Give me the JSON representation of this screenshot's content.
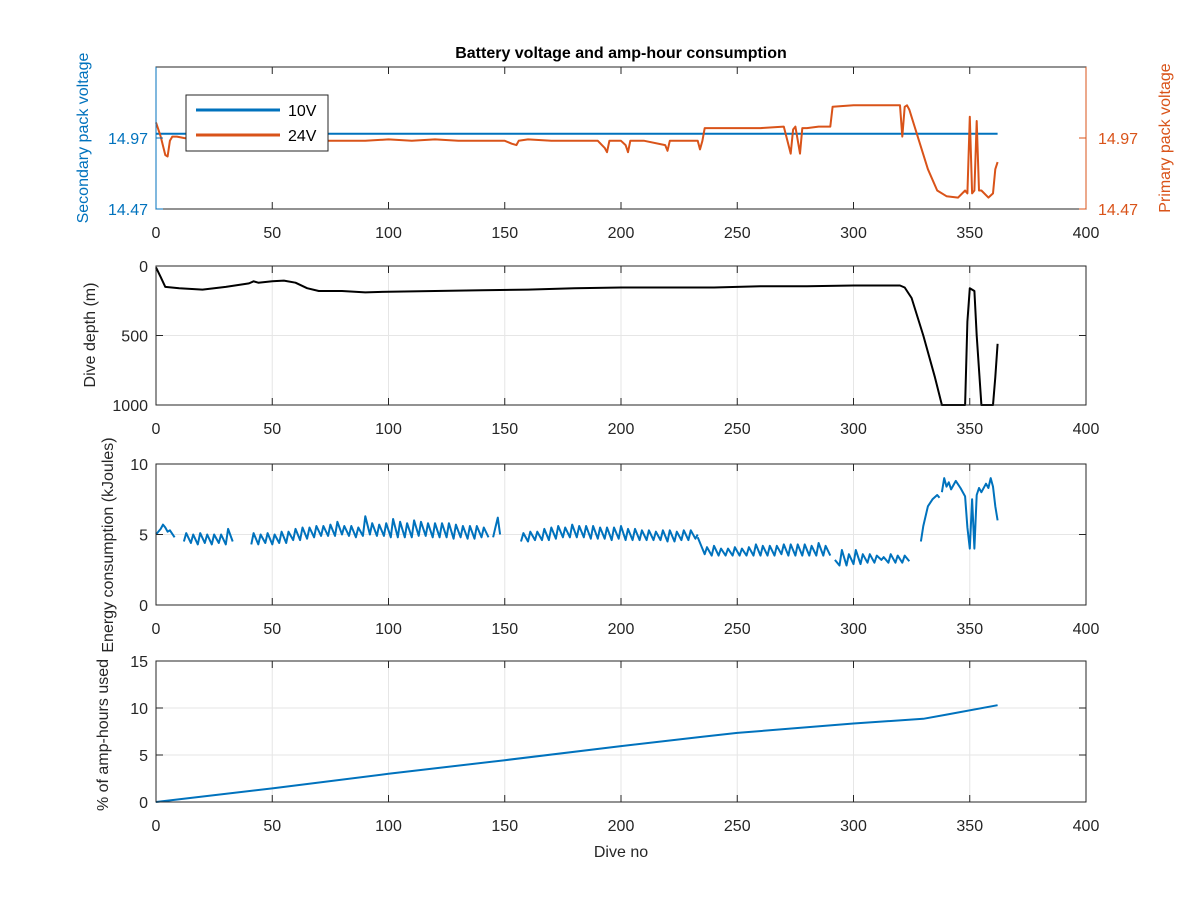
{
  "colors": {
    "blue": "#0072BD",
    "orange": "#D95319",
    "black": "#000000",
    "axis": "#262626",
    "grid": "#e6e6e6"
  },
  "chart_data": [
    {
      "type": "line",
      "title": "Battery voltage and amp-hour consumption",
      "xlabel": "",
      "ylabel_left": "Secondary pack voltage",
      "ylabel_right": "Primary pack voltage",
      "xlim": [
        0,
        400
      ],
      "ylim_left": [
        14.47,
        15.47
      ],
      "ylim_right": [
        14.47,
        15.47
      ],
      "xticks": [
        "0",
        "50",
        "100",
        "150",
        "200",
        "250",
        "300",
        "350",
        "400"
      ],
      "yticks_left": [
        "14.47",
        "14.97"
      ],
      "yticks_right": [
        "14.47",
        "14.97"
      ],
      "grid": false,
      "legend": {
        "position": "top-left",
        "entries": [
          "10V",
          "24V"
        ]
      },
      "series": [
        {
          "name": "10V",
          "axis": "left",
          "color": "#0072BD",
          "x": [
            0,
            362
          ],
          "y": [
            15.0,
            15.0
          ]
        },
        {
          "name": "24V",
          "axis": "right",
          "color": "#D95319",
          "x": [
            0,
            2,
            4,
            5,
            6,
            7,
            9,
            12,
            20,
            30,
            40,
            50,
            60,
            70,
            80,
            90,
            100,
            110,
            120,
            130,
            140,
            150,
            153,
            155,
            156,
            160,
            170,
            180,
            190,
            193,
            194,
            195,
            200,
            202,
            203,
            204,
            210,
            219,
            220,
            221,
            230,
            233,
            234,
            235,
            236,
            250,
            260,
            270,
            273,
            274,
            275,
            277,
            278,
            279,
            280,
            285,
            290,
            291,
            300,
            310,
            320,
            321,
            322,
            323,
            324,
            328,
            332,
            336,
            340,
            345,
            348,
            349,
            350,
            351,
            352,
            353,
            354,
            355,
            358,
            360,
            361,
            362
          ],
          "y": [
            15.08,
            14.98,
            14.85,
            14.84,
            14.95,
            14.98,
            14.98,
            14.97,
            14.95,
            14.96,
            14.95,
            14.96,
            14.96,
            14.95,
            14.95,
            14.95,
            14.96,
            14.95,
            14.96,
            14.95,
            14.95,
            14.95,
            14.93,
            14.92,
            14.95,
            14.96,
            14.95,
            14.95,
            14.95,
            14.9,
            14.87,
            14.95,
            14.95,
            14.92,
            14.87,
            14.95,
            14.95,
            14.92,
            14.88,
            14.95,
            14.95,
            14.95,
            14.89,
            14.95,
            15.04,
            15.04,
            15.04,
            15.05,
            14.86,
            15.03,
            15.05,
            14.86,
            15.04,
            15.04,
            15.04,
            15.05,
            15.05,
            15.19,
            15.2,
            15.2,
            15.2,
            14.98,
            15.19,
            15.2,
            15.17,
            14.96,
            14.75,
            14.6,
            14.56,
            14.55,
            14.6,
            14.58,
            15.12,
            14.58,
            14.6,
            15.09,
            14.6,
            14.6,
            14.55,
            14.58,
            14.75,
            14.8
          ]
        }
      ]
    },
    {
      "type": "line",
      "title": "",
      "xlabel": "",
      "ylabel": "Dive depth (m)",
      "xlim": [
        0,
        400
      ],
      "ylim": [
        0,
        1000
      ],
      "y_reversed": true,
      "xticks": [
        "0",
        "50",
        "100",
        "150",
        "200",
        "250",
        "300",
        "350",
        "400"
      ],
      "yticks": [
        "0",
        "500",
        "1000"
      ],
      "grid": true,
      "series": [
        {
          "color": "#000000",
          "x": [
            0,
            2,
            4,
            10,
            20,
            30,
            40,
            42,
            44,
            50,
            55,
            60,
            65,
            70,
            80,
            90,
            100,
            120,
            140,
            160,
            180,
            200,
            220,
            240,
            260,
            280,
            300,
            320,
            322,
            325,
            330,
            335,
            338,
            340,
            345,
            348,
            349,
            350,
            351,
            352,
            353,
            355,
            360,
            361,
            362
          ],
          "y": [
            10,
            80,
            150,
            160,
            170,
            150,
            125,
            110,
            120,
            110,
            105,
            120,
            160,
            180,
            180,
            190,
            185,
            180,
            175,
            170,
            160,
            155,
            155,
            155,
            145,
            145,
            140,
            140,
            155,
            230,
            500,
            800,
            1000,
            1000,
            1000,
            1000,
            400,
            160,
            170,
            180,
            500,
            1000,
            1000,
            800,
            560
          ]
        }
      ]
    },
    {
      "type": "line",
      "title": "",
      "xlabel": "",
      "ylabel": "Energy consumption (kJoules)",
      "xlim": [
        0,
        400
      ],
      "ylim": [
        0,
        10
      ],
      "xticks": [
        "0",
        "50",
        "100",
        "150",
        "200",
        "250",
        "300",
        "350",
        "400"
      ],
      "yticks": [
        "0",
        "5",
        "10"
      ],
      "grid": true,
      "series": [
        {
          "color": "#0072BD",
          "segments": [
            {
              "x": [
                0,
                2,
                3,
                4,
                5,
                6,
                8
              ],
              "y": [
                5.0,
                5.4,
                5.7,
                5.5,
                5.2,
                5.3,
                4.8
              ]
            },
            {
              "x": [
                12,
                13,
                15,
                16,
                18,
                19,
                21,
                22,
                24,
                25,
                27,
                28,
                30,
                31,
                33
              ],
              "y": [
                4.5,
                5.1,
                4.4,
                5.0,
                4.3,
                5.1,
                4.4,
                5.0,
                4.3,
                5.0,
                4.4,
                5.0,
                4.3,
                5.4,
                4.5
              ]
            },
            {
              "x": [
                41,
                42,
                44,
                45,
                47,
                48,
                50,
                51,
                53,
                54,
                56,
                57,
                59,
                60,
                62,
                63,
                65,
                66,
                68,
                69,
                71,
                72,
                74,
                75,
                77,
                78,
                80,
                81,
                83,
                84,
                86,
                87,
                89,
                90,
                92,
                93,
                95,
                96,
                98,
                99,
                101,
                102,
                104,
                105,
                107,
                108,
                110,
                111,
                113,
                114,
                116,
                117,
                119,
                120,
                122,
                123,
                125,
                126,
                128,
                129,
                131,
                132,
                134,
                135,
                137,
                138,
                140,
                141,
                143
              ],
              "y": [
                4.3,
                5.1,
                4.3,
                5.0,
                4.4,
                5.1,
                4.3,
                5.0,
                4.4,
                5.2,
                4.4,
                5.2,
                4.6,
                5.4,
                4.6,
                5.5,
                4.7,
                5.5,
                4.8,
                5.6,
                4.9,
                5.6,
                4.9,
                5.7,
                4.9,
                5.9,
                5.0,
                5.6,
                4.9,
                5.6,
                4.8,
                5.5,
                4.9,
                6.3,
                5.0,
                5.8,
                4.9,
                5.7,
                4.9,
                5.8,
                4.8,
                6.1,
                4.8,
                5.9,
                4.8,
                5.8,
                4.8,
                6.0,
                4.9,
                5.9,
                4.9,
                5.8,
                4.8,
                5.8,
                4.8,
                5.8,
                4.8,
                5.8,
                4.7,
                5.7,
                4.8,
                5.6,
                4.7,
                5.6,
                4.7,
                5.6,
                4.8,
                5.5,
                4.8
              ]
            },
            {
              "x": [
                145,
                146,
                147,
                148
              ],
              "y": [
                4.8,
                5.5,
                6.2,
                5.0
              ]
            },
            {
              "x": [
                157,
                158,
                160,
                161,
                163,
                164,
                166,
                167,
                169,
                170,
                172,
                173,
                175,
                176,
                178,
                179,
                181,
                182,
                184,
                185,
                187,
                188,
                190,
                191,
                193,
                194,
                196,
                197,
                199,
                200,
                202,
                203,
                205,
                206,
                208,
                209,
                211,
                212,
                214,
                215,
                217,
                218,
                220,
                221,
                223,
                224,
                226,
                227,
                229,
                230,
                232,
                233
              ],
              "y": [
                4.5,
                5.1,
                4.5,
                5.2,
                4.6,
                5.2,
                4.6,
                5.4,
                4.6,
                5.5,
                4.7,
                5.6,
                4.8,
                5.5,
                4.8,
                5.7,
                4.8,
                5.6,
                4.8,
                5.6,
                4.7,
                5.6,
                4.7,
                5.5,
                4.7,
                5.5,
                4.6,
                5.5,
                4.7,
                5.6,
                4.6,
                5.4,
                4.6,
                5.4,
                4.6,
                5.3,
                4.6,
                5.3,
                4.6,
                5.2,
                4.6,
                5.3,
                4.5,
                5.3,
                4.5,
                5.2,
                4.6,
                5.3,
                4.6,
                5.3,
                4.7,
                5.0
              ]
            },
            {
              "x": [
                233,
                236,
                237,
                239,
                240,
                242,
                243,
                245,
                246,
                248,
                249,
                251,
                252,
                254,
                255,
                257,
                258,
                260,
                261,
                263,
                264,
                266,
                267,
                269,
                270,
                272,
                273,
                275,
                276,
                278,
                279,
                281,
                282,
                284,
                285,
                287,
                288,
                290
              ],
              "y": [
                4.8,
                3.6,
                4.1,
                3.5,
                4.2,
                3.5,
                4.0,
                3.5,
                4.0,
                3.5,
                4.1,
                3.5,
                4.0,
                3.5,
                4.1,
                3.5,
                4.3,
                3.5,
                4.2,
                3.5,
                4.2,
                3.5,
                4.2,
                3.6,
                4.3,
                3.5,
                4.3,
                3.5,
                4.3,
                3.5,
                4.3,
                3.5,
                4.2,
                3.5,
                4.4,
                3.5,
                4.2,
                3.5
              ]
            },
            {
              "x": [
                292,
                294,
                295,
                297,
                298,
                300,
                301,
                303,
                304,
                306,
                307,
                309,
                310,
                312,
                313,
                315,
                316,
                318,
                319,
                321,
                322,
                324
              ],
              "y": [
                3.2,
                2.8,
                3.9,
                2.8,
                3.6,
                2.9,
                3.9,
                2.9,
                3.6,
                3.0,
                3.6,
                3.0,
                3.5,
                3.2,
                3.4,
                3.0,
                3.6,
                3.0,
                3.5,
                3.0,
                3.5,
                3.1
              ]
            },
            {
              "x": [
                329,
                330,
                332,
                334,
                336,
                337
              ],
              "y": [
                4.5,
                5.6,
                7.0,
                7.5,
                7.8,
                7.6
              ]
            },
            {
              "x": [
                338,
                339,
                340,
                341,
                342,
                344,
                346,
                348,
                349,
                350,
                351,
                352,
                353,
                354,
                355,
                357,
                358,
                359,
                360,
                361,
                362
              ],
              "y": [
                8.0,
                9.0,
                8.4,
                8.7,
                8.2,
                8.8,
                8.3,
                7.7,
                5.5,
                4.0,
                7.5,
                4.0,
                7.8,
                8.3,
                8.0,
                8.6,
                8.3,
                9.0,
                8.4,
                7.0,
                6.0
              ]
            }
          ]
        }
      ]
    },
    {
      "type": "line",
      "title": "",
      "xlabel": "Dive no",
      "ylabel": "% of amp-hours used",
      "xlim": [
        0,
        400
      ],
      "ylim": [
        0,
        15
      ],
      "xticks": [
        "0",
        "50",
        "100",
        "150",
        "200",
        "250",
        "300",
        "350",
        "400"
      ],
      "yticks": [
        "0",
        "5",
        "10",
        "15"
      ],
      "grid": true,
      "series": [
        {
          "color": "#0072BD",
          "x": [
            0,
            50,
            100,
            150,
            200,
            235,
            250,
            300,
            330,
            340,
            362
          ],
          "y": [
            0,
            1.45,
            3.0,
            4.45,
            5.95,
            6.95,
            7.35,
            8.35,
            8.85,
            9.3,
            10.3
          ]
        }
      ]
    }
  ]
}
